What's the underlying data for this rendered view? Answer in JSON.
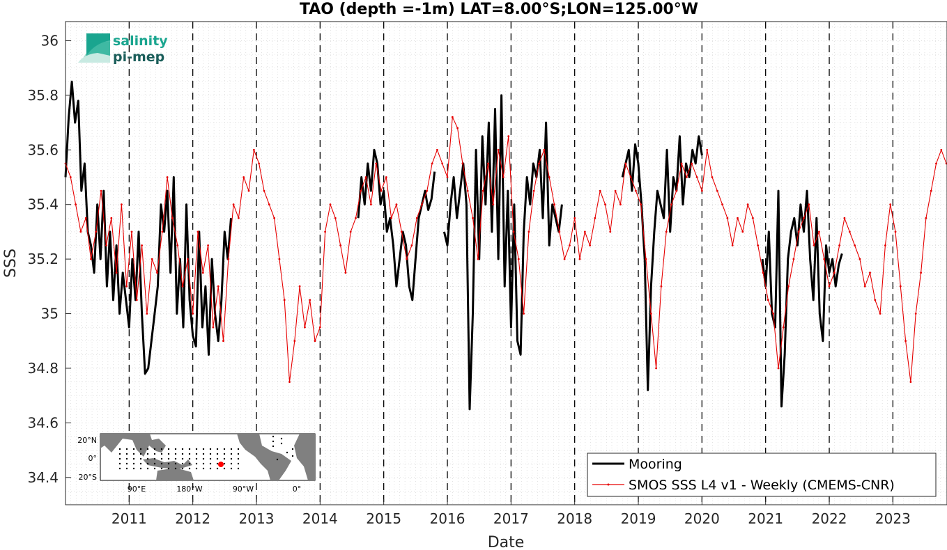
{
  "chart_data": {
    "type": "line",
    "title": "TAO (depth =-1m) LAT=8.00°S;LON=125.00°W",
    "xlabel": "Date",
    "ylabel": "SSS",
    "xlim": [
      2010.0,
      2023.85
    ],
    "ylim": [
      34.3,
      36.07
    ],
    "y_ticks": [
      34.4,
      34.6,
      34.8,
      35,
      35.2,
      35.4,
      35.6,
      35.8,
      36
    ],
    "y_tick_labels": [
      "34.4",
      "34.6",
      "34.8",
      "35",
      "35.2",
      "35.4",
      "35.6",
      "35.8",
      "36"
    ],
    "x_ticks": [
      2011,
      2012,
      2013,
      2014,
      2015,
      2016,
      2017,
      2018,
      2019,
      2020,
      2021,
      2022,
      2023
    ],
    "x_tick_labels": [
      "2011",
      "2012",
      "2013",
      "2014",
      "2015",
      "2016",
      "2017",
      "2018",
      "2019",
      "2020",
      "2021",
      "2022",
      "2023"
    ],
    "year_boundaries": [
      2011,
      2012,
      2013,
      2014,
      2015,
      2016,
      2017,
      2018,
      2019,
      2020,
      2021,
      2022,
      2023
    ],
    "grid": true,
    "legend_position": "bottom-right",
    "series": [
      {
        "name": "Mooring",
        "color": "#000000",
        "segments": [
          {
            "x": [
              2010.0,
              2010.05,
              2010.1,
              2010.15,
              2010.2,
              2010.25,
              2010.3,
              2010.35,
              2010.4,
              2010.45,
              2010.5,
              2010.55,
              2010.6,
              2010.65,
              2010.7,
              2010.75,
              2010.8,
              2010.85,
              2010.9,
              2010.95,
              2011.0,
              2011.05,
              2011.1,
              2011.15,
              2011.2,
              2011.25,
              2011.3,
              2011.35,
              2011.4,
              2011.45,
              2011.5,
              2011.55,
              2011.6,
              2011.65,
              2011.7,
              2011.75,
              2011.8,
              2011.85,
              2011.9,
              2011.95,
              2012.0,
              2012.05,
              2012.1,
              2012.15,
              2012.2,
              2012.25,
              2012.3,
              2012.35,
              2012.4,
              2012.45,
              2012.5,
              2012.55,
              2012.6
            ],
            "y": [
              35.5,
              35.72,
              35.85,
              35.7,
              35.78,
              35.45,
              35.55,
              35.3,
              35.25,
              35.15,
              35.4,
              35.2,
              35.45,
              35.1,
              35.3,
              35.05,
              35.25,
              35.0,
              35.15,
              35.05,
              34.95,
              35.2,
              35.05,
              35.3,
              35.0,
              34.78,
              34.8,
              34.9,
              35.0,
              35.1,
              35.4,
              35.3,
              35.45,
              35.15,
              35.5,
              35.0,
              35.2,
              34.95,
              35.4,
              35.05,
              34.92,
              34.88,
              35.3,
              34.95,
              35.1,
              34.85,
              35.2,
              35.0,
              34.9,
              35.05,
              35.3,
              35.2,
              35.35
            ]
          },
          {
            "x": [
              2014.6,
              2014.65,
              2014.7,
              2014.75,
              2014.8,
              2014.85,
              2014.9,
              2014.95,
              2015.0,
              2015.05,
              2015.1,
              2015.15,
              2015.2,
              2015.25,
              2015.3,
              2015.35,
              2015.4,
              2015.45,
              2015.5,
              2015.55,
              2015.6,
              2015.65,
              2015.7,
              2015.75,
              2015.8
            ],
            "y": [
              35.35,
              35.5,
              35.4,
              35.55,
              35.45,
              35.6,
              35.55,
              35.4,
              35.45,
              35.3,
              35.35,
              35.25,
              35.1,
              35.2,
              35.3,
              35.25,
              35.1,
              35.05,
              35.2,
              35.35,
              35.4,
              35.45,
              35.38,
              35.42,
              35.52
            ]
          },
          {
            "x": [
              2015.95,
              2016.0,
              2016.05,
              2016.1,
              2016.15,
              2016.2,
              2016.25,
              2016.3,
              2016.35,
              2016.4,
              2016.45,
              2016.5,
              2016.55,
              2016.6,
              2016.65,
              2016.7,
              2016.75,
              2016.8,
              2016.85,
              2016.9,
              2016.95,
              2017.0,
              2017.05,
              2017.1,
              2017.15,
              2017.2,
              2017.25,
              2017.3,
              2017.35,
              2017.4,
              2017.45,
              2017.5,
              2017.55,
              2017.6,
              2017.65,
              2017.7,
              2017.75,
              2017.8
            ],
            "y": [
              35.3,
              35.25,
              35.4,
              35.5,
              35.35,
              35.45,
              35.55,
              35.4,
              34.65,
              35.0,
              35.6,
              35.2,
              35.65,
              35.4,
              35.7,
              35.3,
              35.75,
              35.2,
              35.8,
              35.1,
              35.45,
              34.95,
              35.4,
              34.9,
              34.85,
              35.3,
              35.5,
              35.4,
              35.55,
              35.5,
              35.6,
              35.35,
              35.7,
              35.25,
              35.4,
              35.35,
              35.3,
              35.4
            ]
          },
          {
            "x": [
              2018.75,
              2018.8,
              2018.85,
              2018.9,
              2018.95,
              2019.0,
              2019.05,
              2019.1,
              2019.15,
              2019.2,
              2019.25,
              2019.3,
              2019.35,
              2019.4,
              2019.45,
              2019.5,
              2019.55,
              2019.6,
              2019.65,
              2019.7,
              2019.75,
              2019.8,
              2019.85,
              2019.9,
              2019.95,
              2020.0
            ],
            "y": [
              35.5,
              35.55,
              35.6,
              35.45,
              35.62,
              35.55,
              35.4,
              35.2,
              34.72,
              35.1,
              35.3,
              35.45,
              35.4,
              35.35,
              35.6,
              35.3,
              35.5,
              35.45,
              35.65,
              35.4,
              35.55,
              35.5,
              35.6,
              35.55,
              35.65,
              35.58
            ]
          },
          {
            "x": [
              2020.95,
              2021.0,
              2021.05,
              2021.1,
              2021.15,
              2021.2,
              2021.25,
              2021.3,
              2021.35,
              2021.4,
              2021.45,
              2021.5,
              2021.55,
              2021.6,
              2021.65,
              2021.7,
              2021.75,
              2021.8,
              2021.85,
              2021.9,
              2021.95,
              2022.0,
              2022.05,
              2022.1,
              2022.15,
              2022.2
            ],
            "y": [
              35.2,
              35.1,
              35.3,
              35.0,
              34.95,
              35.45,
              34.66,
              34.85,
              35.2,
              35.3,
              35.35,
              35.25,
              35.4,
              35.3,
              35.45,
              35.2,
              35.05,
              35.35,
              35.0,
              34.9,
              35.25,
              35.15,
              35.2,
              35.1,
              35.18,
              35.22
            ]
          }
        ]
      },
      {
        "name": "SMOS SSS L4 v1 - Weekly (CMEMS-CNR)",
        "color": "#e60000",
        "segments": [
          {
            "x": [
              2010.0,
              2010.08,
              2010.16,
              2010.24,
              2010.32,
              2010.4,
              2010.48,
              2010.56,
              2010.64,
              2010.72,
              2010.8,
              2010.88,
              2010.96,
              2011.04,
              2011.12,
              2011.2,
              2011.28,
              2011.36,
              2011.44,
              2011.52,
              2011.6,
              2011.68,
              2011.76,
              2011.84,
              2011.92,
              2012.0,
              2012.08,
              2012.16,
              2012.24,
              2012.32,
              2012.4,
              2012.48,
              2012.56,
              2012.64,
              2012.72,
              2012.8,
              2012.88,
              2012.96,
              2013.04,
              2013.12,
              2013.2,
              2013.28,
              2013.36,
              2013.44,
              2013.52,
              2013.6,
              2013.68,
              2013.76,
              2013.84,
              2013.92,
              2014.0,
              2014.08,
              2014.16,
              2014.24,
              2014.32,
              2014.4,
              2014.48,
              2014.56,
              2014.64,
              2014.72,
              2014.8,
              2014.88,
              2014.96,
              2015.04,
              2015.12,
              2015.2,
              2015.28,
              2015.36,
              2015.44,
              2015.52,
              2015.6,
              2015.68,
              2015.76,
              2015.84,
              2015.92,
              2016.0,
              2016.08,
              2016.16,
              2016.24,
              2016.32,
              2016.4,
              2016.48,
              2016.56,
              2016.64,
              2016.72,
              2016.8,
              2016.88,
              2016.96,
              2017.04,
              2017.12,
              2017.2,
              2017.28,
              2017.36,
              2017.44,
              2017.52,
              2017.6,
              2017.68,
              2017.76,
              2017.84,
              2017.92,
              2018.0,
              2018.08,
              2018.16,
              2018.24,
              2018.32,
              2018.4,
              2018.48,
              2018.56,
              2018.64,
              2018.72,
              2018.8,
              2018.88,
              2018.96,
              2019.04,
              2019.12,
              2019.2,
              2019.28,
              2019.36,
              2019.44,
              2019.52,
              2019.6,
              2019.68,
              2019.76,
              2019.84,
              2019.92,
              2020.0,
              2020.08,
              2020.16,
              2020.24,
              2020.32,
              2020.4,
              2020.48,
              2020.56,
              2020.64,
              2020.72,
              2020.8,
              2020.88,
              2020.96,
              2021.04,
              2021.12,
              2021.2,
              2021.28,
              2021.36,
              2021.44,
              2021.52,
              2021.6,
              2021.68,
              2021.76,
              2021.84,
              2021.92,
              2022.0,
              2022.08,
              2022.16,
              2022.24,
              2022.32,
              2022.4,
              2022.48,
              2022.56,
              2022.64,
              2022.72,
              2022.8,
              2022.88,
              2022.96,
              2023.04,
              2023.12,
              2023.2,
              2023.28,
              2023.36,
              2023.44,
              2023.52,
              2023.6,
              2023.68,
              2023.76,
              2023.84
            ],
            "y": [
              35.55,
              35.5,
              35.4,
              35.3,
              35.35,
              35.2,
              35.3,
              35.45,
              35.25,
              35.35,
              35.15,
              35.4,
              35.1,
              35.3,
              35.05,
              35.25,
              35.0,
              35.2,
              35.15,
              35.3,
              35.5,
              35.35,
              35.25,
              35.1,
              35.2,
              35.0,
              35.3,
              35.15,
              35.25,
              34.95,
              35.1,
              34.9,
              35.2,
              35.4,
              35.35,
              35.5,
              35.45,
              35.6,
              35.55,
              35.45,
              35.4,
              35.35,
              35.2,
              35.05,
              34.75,
              34.9,
              35.1,
              34.95,
              35.05,
              34.9,
              34.95,
              35.3,
              35.4,
              35.35,
              35.25,
              35.15,
              35.3,
              35.35,
              35.45,
              35.5,
              35.4,
              35.55,
              35.45,
              35.5,
              35.35,
              35.4,
              35.3,
              35.2,
              35.25,
              35.35,
              35.4,
              35.45,
              35.55,
              35.6,
              35.55,
              35.5,
              35.72,
              35.68,
              35.55,
              35.45,
              35.35,
              35.2,
              35.45,
              35.55,
              35.4,
              35.6,
              35.5,
              35.65,
              35.3,
              35.2,
              35.0,
              35.3,
              35.45,
              35.55,
              35.6,
              35.5,
              35.4,
              35.3,
              35.2,
              35.25,
              35.35,
              35.2,
              35.3,
              35.25,
              35.35,
              35.45,
              35.4,
              35.3,
              35.45,
              35.4,
              35.55,
              35.5,
              35.45,
              35.4,
              35.2,
              35.0,
              34.8,
              35.1,
              35.3,
              35.4,
              35.45,
              35.55,
              35.5,
              35.55,
              35.5,
              35.45,
              35.6,
              35.5,
              35.45,
              35.4,
              35.35,
              35.25,
              35.35,
              35.3,
              35.4,
              35.35,
              35.25,
              35.15,
              35.05,
              35.0,
              34.8,
              34.95,
              35.1,
              35.2,
              35.3,
              35.35,
              35.4,
              35.25,
              35.3,
              35.2,
              35.1,
              35.15,
              35.25,
              35.35,
              35.3,
              35.25,
              35.2,
              35.1,
              35.15,
              35.05,
              35.0,
              35.25,
              35.4,
              35.3,
              35.1,
              34.9,
              34.75,
              35.0,
              35.15,
              35.35,
              35.45,
              35.55,
              35.6,
              35.55
            ]
          }
        ]
      }
    ]
  },
  "legend": {
    "mooring": "Mooring",
    "smos": "SMOS SSS L4 v1 - Weekly (CMEMS-CNR)"
  },
  "logo": {
    "line1": "salinity",
    "line2": "pi-mep",
    "color1": "#1aa58f",
    "color2": "#1b5e5a"
  },
  "inset_map": {
    "lat_labels": [
      "20°N",
      "0°",
      "20°S"
    ],
    "lon_labels": [
      "90°E",
      "180°W",
      "90°W",
      "0°"
    ],
    "marker": {
      "lat": -8.0,
      "lon": -125.0,
      "color": "#ff0000"
    },
    "ocean_color": "#ffffff",
    "land_color": "#808080"
  }
}
